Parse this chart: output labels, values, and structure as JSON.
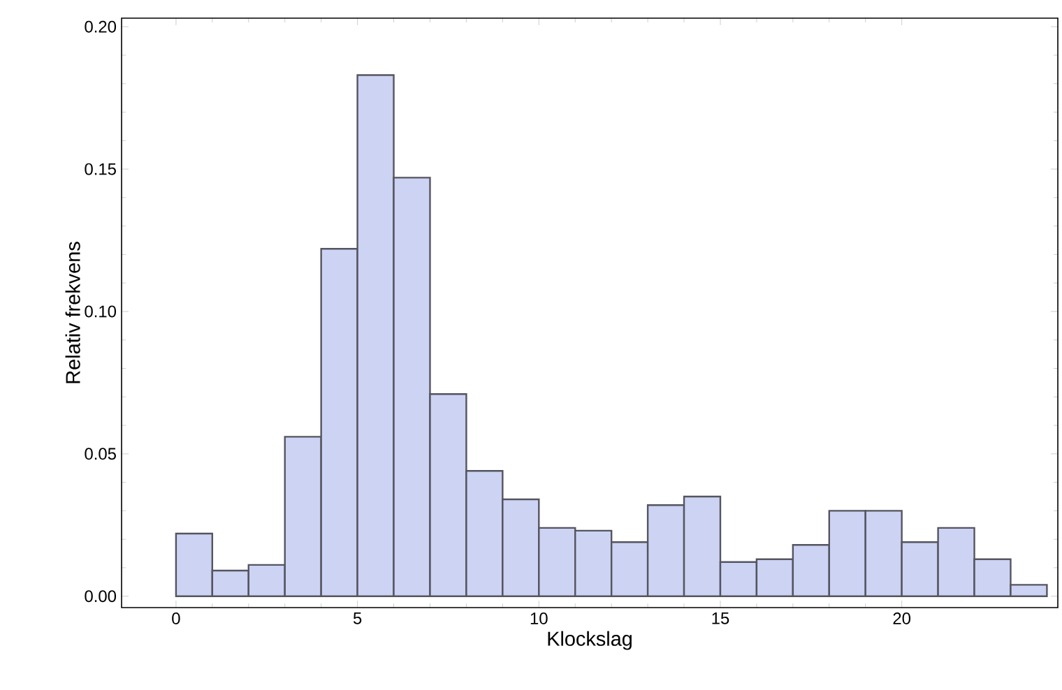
{
  "chart_data": {
    "type": "histogram",
    "xlabel": "Klockslag",
    "ylabel": "Relativ frekvens",
    "bins": [
      0,
      1,
      2,
      3,
      4,
      5,
      6,
      7,
      8,
      9,
      10,
      11,
      12,
      13,
      14,
      15,
      16,
      17,
      18,
      19,
      20,
      21,
      22,
      23,
      24
    ],
    "values": [
      0.022,
      0.009,
      0.011,
      0.056,
      0.122,
      0.183,
      0.147,
      0.071,
      0.044,
      0.034,
      0.024,
      0.023,
      0.019,
      0.032,
      0.035,
      0.012,
      0.013,
      0.018,
      0.03,
      0.03,
      0.019,
      0.024,
      0.013,
      0.004
    ],
    "color": "#ccd3f3",
    "xlim": [
      -1.5,
      24.3
    ],
    "ylim": [
      -0.004,
      0.203
    ],
    "xticks": [
      0,
      5,
      10,
      15,
      20
    ],
    "yticks": [
      {
        "value": 0,
        "label": "0.00"
      },
      {
        "value": 0.05,
        "label": "0.05"
      },
      {
        "value": 0.1,
        "label": "0.10"
      },
      {
        "value": 0.15,
        "label": "0.15"
      },
      {
        "value": 0.2,
        "label": "0.20"
      }
    ]
  }
}
